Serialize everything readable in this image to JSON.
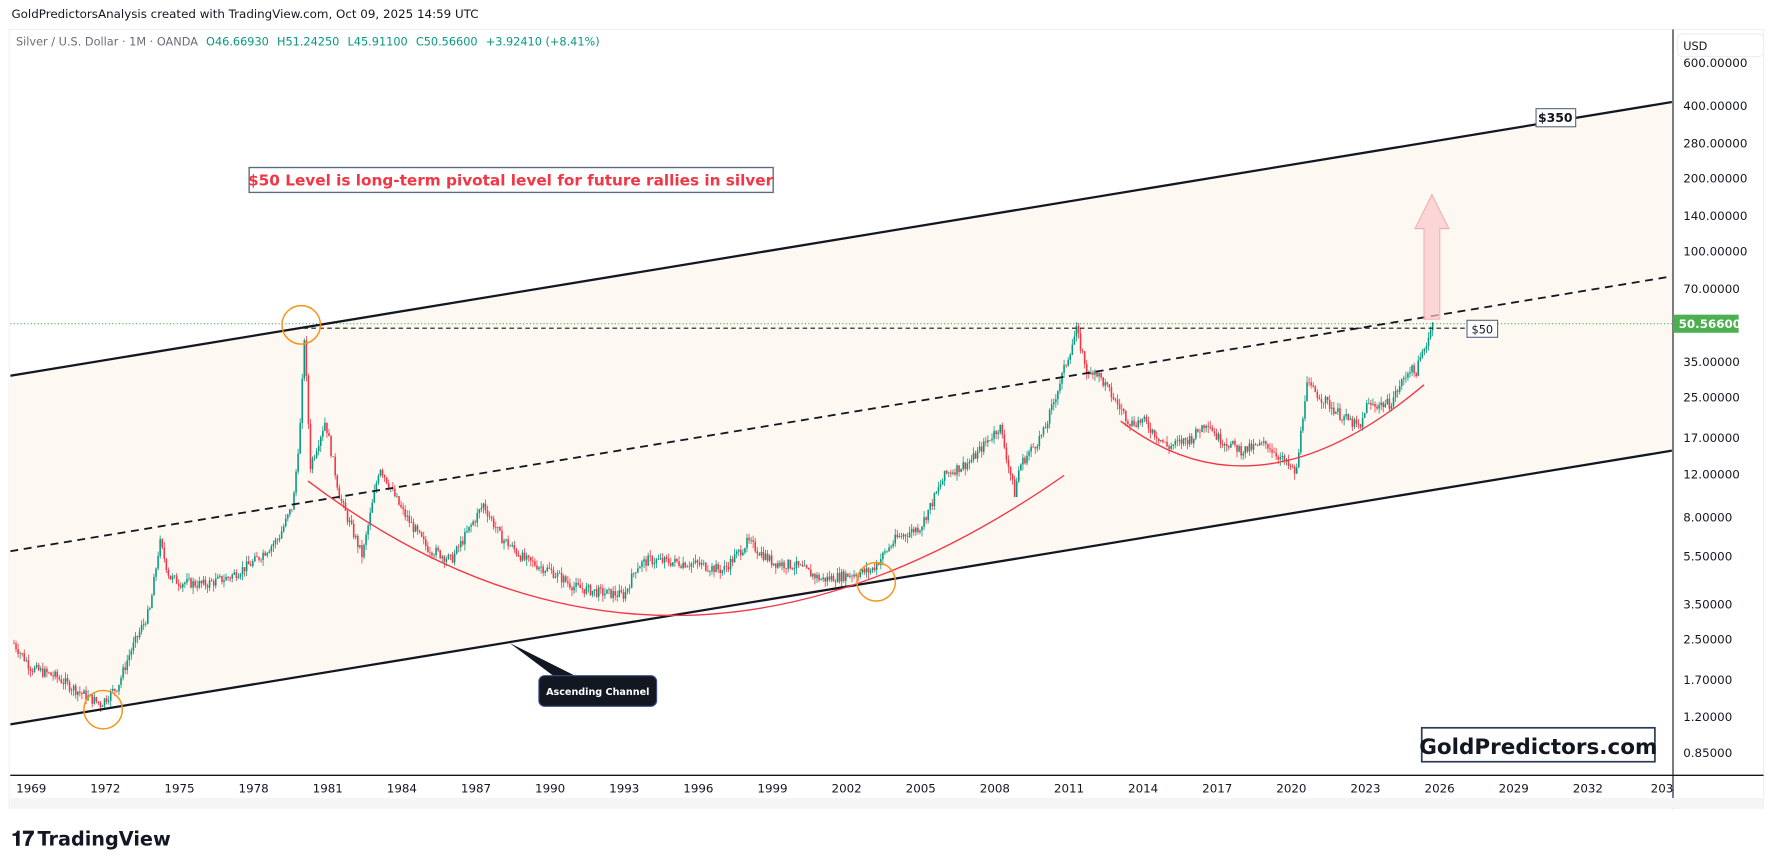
{
  "header": {
    "credit": "GoldPredictorsAnalysis created with TradingView.com, Oct 09, 2025 14:59 UTC"
  },
  "legend": {
    "symbol": "Silver / U.S. Dollar · 1M · OANDA",
    "open": "O46.66930",
    "high": "H51.24250",
    "low": "L45.91100",
    "close": "C50.56600",
    "change": "+3.92410 (+8.41%)"
  },
  "colors": {
    "up": "#089981",
    "down": "#F23645",
    "price_tag": "#4CAF50",
    "channel_fill": "#FDF8F1",
    "annotation_red": "#F23645",
    "circle": "#F7931A"
  },
  "price_axis": {
    "currency": "USD",
    "current_price": "50.56600"
  },
  "branding": {
    "footer_logo": "TradingView",
    "watermark": "GoldPredictors.com"
  },
  "annotations": {
    "headline": "$50 Level is long-term pivotal level for future rallies in silver",
    "label_350": "$350",
    "label_50": "$50",
    "callout": "Ascending Channel"
  },
  "chart_data": {
    "type": "candlestick",
    "scale": "log",
    "ylim": [
      0.8,
      650
    ],
    "xlim": [
      1968.3,
      2035
    ],
    "y_ticks": [
      600,
      400,
      280,
      200,
      140,
      100,
      70,
      35,
      25,
      17,
      12,
      8,
      5.5,
      3.5,
      2.5,
      1.7,
      1.2,
      0.85
    ],
    "y_tick_labels": [
      "600.00000",
      "400.00000",
      "280.00000",
      "200.00000",
      "140.00000",
      "100.00000",
      "70.00000",
      "35.00000",
      "25.00000",
      "17.00000",
      "12.00000",
      "8.00000",
      "5.50000",
      "3.50000",
      "2.50000",
      "1.70000",
      "1.20000",
      "0.85000"
    ],
    "x_ticks": [
      "1969",
      "1972",
      "1975",
      "1978",
      "1981",
      "1984",
      "1987",
      "1990",
      "1993",
      "1996",
      "1999",
      "2002",
      "2005",
      "2008",
      "2011",
      "2014",
      "2017",
      "2020",
      "2023",
      "2026",
      "2029",
      "2032",
      "203"
    ],
    "approx_price_path": [
      [
        1968.3,
        2.4
      ],
      [
        1969,
        1.9
      ],
      [
        1970,
        1.75
      ],
      [
        1971,
        1.5
      ],
      [
        1971.8,
        1.35
      ],
      [
        1972.5,
        1.6
      ],
      [
        1973,
        2.2
      ],
      [
        1973.8,
        3.3
      ],
      [
        1974.2,
        6.3
      ],
      [
        1974.6,
        4.5
      ],
      [
        1975,
        4.3
      ],
      [
        1976,
        4.2
      ],
      [
        1977,
        4.5
      ],
      [
        1978,
        5.2
      ],
      [
        1979,
        6.5
      ],
      [
        1979.6,
        9
      ],
      [
        1979.9,
        20
      ],
      [
        1980.05,
        44
      ],
      [
        1980.3,
        13
      ],
      [
        1980.9,
        20
      ],
      [
        1981.5,
        9.5
      ],
      [
        1982.4,
        5.5
      ],
      [
        1983.1,
        13
      ],
      [
        1984,
        8.5
      ],
      [
        1985,
        6
      ],
      [
        1986,
        5.3
      ],
      [
        1987.3,
        9
      ],
      [
        1988,
        6.6
      ],
      [
        1989,
        5.3
      ],
      [
        1990,
        4.8
      ],
      [
        1991,
        4.1
      ],
      [
        1992,
        3.9
      ],
      [
        1993,
        3.8
      ],
      [
        1993.5,
        5
      ],
      [
        1994,
        5.3
      ],
      [
        1995,
        5.2
      ],
      [
        1996,
        5.1
      ],
      [
        1997,
        4.8
      ],
      [
        1998,
        6.3
      ],
      [
        1999,
        5.2
      ],
      [
        2000,
        5
      ],
      [
        2001,
        4.4
      ],
      [
        2002,
        4.6
      ],
      [
        2003,
        4.8
      ],
      [
        2004,
        6.5
      ],
      [
        2005,
        7.3
      ],
      [
        2006,
        12
      ],
      [
        2007,
        13.5
      ],
      [
        2008.2,
        19
      ],
      [
        2008.8,
        10
      ],
      [
        2009,
        13
      ],
      [
        2010,
        18
      ],
      [
        2011.3,
        47
      ],
      [
        2011.8,
        30
      ],
      [
        2012,
        33
      ],
      [
        2013,
        23
      ],
      [
        2013.5,
        19.5
      ],
      [
        2014,
        20
      ],
      [
        2015,
        15.5
      ],
      [
        2016,
        17
      ],
      [
        2016.6,
        20
      ],
      [
        2017,
        17
      ],
      [
        2018,
        15
      ],
      [
        2019,
        16
      ],
      [
        2020.2,
        12
      ],
      [
        2020.6,
        28
      ],
      [
        2021,
        26
      ],
      [
        2022,
        21
      ],
      [
        2022.8,
        18.5
      ],
      [
        2023,
        23
      ],
      [
        2024,
        23.5
      ],
      [
        2024.8,
        33
      ],
      [
        2025,
        31
      ],
      [
        2025.75,
        50.566
      ]
    ],
    "channel": {
      "upper_line_label": "$350",
      "pivot_level": 50,
      "pivot_label": "$50"
    }
  }
}
